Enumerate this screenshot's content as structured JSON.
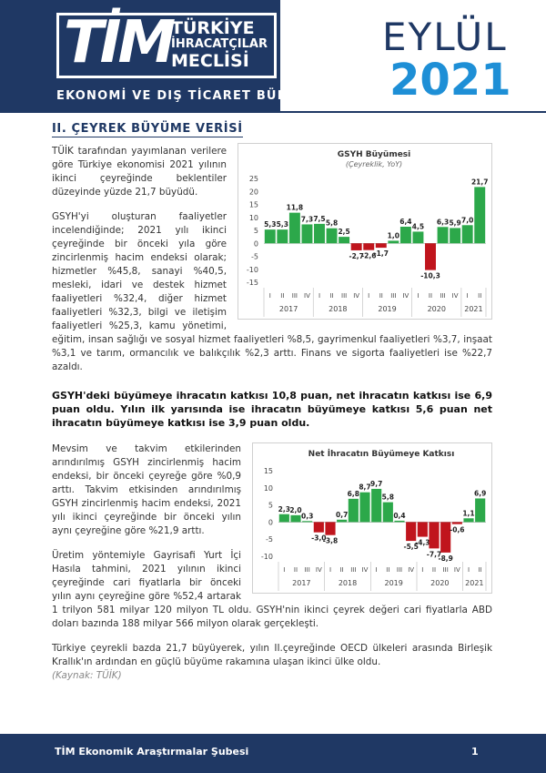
{
  "header": {
    "logo": "TİM",
    "logo_lines": [
      "TÜRKİYE",
      "İHRACATÇILAR",
      "MECLİSİ"
    ],
    "month": "EYLÜL",
    "year": "2021",
    "subtitle": "EKONOMİ VE DIŞ TİCARET BÜLTENİ"
  },
  "section_title": "II. ÇEYREK BÜYÜME VERİSİ",
  "paragraphs": [
    "TÜİK tarafından yayımlanan verilere göre Türkiye ekonomisi 2021 yılının ikinci çeyreğinde beklentiler düzeyinde yüzde 21,7 büyüdü.",
    "GSYH'yi oluşturan faaliyetler incelendiğinde; 2021 yılı ikinci çeyreğinde bir önceki yıla göre zincirlenmiş hacim endeksi olarak; hizmetler %45,8, sanayi %40,5, mesleki, idari ve destek hizmet faaliyetleri %32,4, diğer hizmet faaliyetleri %32,3, bilgi ve iletişim faaliyetleri %25,3, kamu yönetimi, eğitim, insan sağlığı ve sosyal hizmet faaliyetleri %8,5, gayrimenkul faaliyetleri %3,7, inşaat %3,1 ve tarım, ormancılık ve balıkçılık %2,3 arttı. Finans ve sigorta faaliyetleri ise %22,7 azaldı.",
    "GSYH'deki büyümeye ihracatın katkısı 10,8 puan, net ihracatın katkısı ise 6,9 puan oldu. Yılın ilk yarısında ise ihracatın büyümeye katkısı 5,6 puan net ihracatın büyümeye katkısı ise 3,9 puan oldu.",
    "Mevsim ve takvim etkilerinden arındırılmış GSYH zincirlenmiş hacim endeksi, bir önceki çeyreğe göre %0,9 arttı. Takvim etkisinden arındırılmış GSYH zincirlenmiş hacim endeksi, 2021 yılı ikinci çeyreğinde bir önceki yılın aynı çeyreğine göre %21,9 arttı.",
    "Üretim yöntemiyle Gayrisafi Yurt İçi Hasıla tahmini, 2021 yılının ikinci çeyreğinde cari fiyatlarla bir önceki yılın aynı çeyreğine göre %52,4 artarak 1 trilyon 581 milyar 120 milyon TL oldu. GSYH'nin ikinci çeyrek değeri cari fiyatlarla ABD doları bazında 188 milyar 566 milyon olarak gerçekleşti.",
    "Türkiye çeyrekli bazda 21,7 büyüyerek, yılın II.çeyreğinde OECD ülkeleri arasında Birleşik Krallık'ın ardından en güçlü büyüme rakamına ulaşan ikinci ülke oldu."
  ],
  "source": "(Kaynak: TÜİK)",
  "chart_data": [
    {
      "type": "bar",
      "title": "GSYH Büyümesi",
      "subtitle": "(Çeyreklik, YoY)",
      "category_groups": [
        {
          "label": "2017",
          "categories": [
            "I",
            "II",
            "III",
            "IV"
          ]
        },
        {
          "label": "2018",
          "categories": [
            "I",
            "II",
            "III",
            "IV"
          ]
        },
        {
          "label": "2019",
          "categories": [
            "I",
            "II",
            "III",
            "IV"
          ]
        },
        {
          "label": "2020",
          "categories": [
            "I",
            "II",
            "III",
            "IV"
          ]
        },
        {
          "label": "2021",
          "categories": [
            "I",
            "II"
          ]
        }
      ],
      "values": [
        5.3,
        5.3,
        11.8,
        7.3,
        7.5,
        5.8,
        2.5,
        -2.7,
        -2.6,
        -1.7,
        1.0,
        6.4,
        4.5,
        -10.3,
        6.3,
        5.9,
        7.0,
        21.7
      ],
      "value_labels": [
        "5,3",
        "5,3",
        "11,8",
        "7,3",
        "7,5",
        "5,8",
        "2,5",
        "-2,7",
        "-2,6",
        "-1,7",
        "1,0",
        "6,4",
        "4,5",
        "-10,3",
        "6,3",
        "5,9",
        "7,0",
        "21,7"
      ],
      "positive_color": "#2ca84a",
      "negative_color": "#c0151d",
      "ylim": [
        -15,
        25
      ],
      "yticks": [
        -15,
        -10,
        -5,
        0,
        5,
        10,
        15,
        20,
        25
      ]
    },
    {
      "type": "bar",
      "title": "Net İhracatın Büyümeye Katkısı",
      "category_groups": [
        {
          "label": "2017",
          "categories": [
            "I",
            "II",
            "III",
            "IV"
          ]
        },
        {
          "label": "2018",
          "categories": [
            "I",
            "II",
            "III",
            "IV"
          ]
        },
        {
          "label": "2019",
          "categories": [
            "I",
            "II",
            "III",
            "IV"
          ]
        },
        {
          "label": "2020",
          "categories": [
            "I",
            "II",
            "III",
            "IV"
          ]
        },
        {
          "label": "2021",
          "categories": [
            "I",
            "II"
          ]
        }
      ],
      "values": [
        2.3,
        2.0,
        0.3,
        -3.0,
        -3.8,
        0.7,
        6.8,
        8.7,
        9.7,
        5.8,
        0.4,
        -5.5,
        -4.3,
        -7.7,
        -8.9,
        -0.6,
        1.1,
        6.9
      ],
      "value_labels": [
        "2,3",
        "2,0",
        "0,3",
        "-3,0",
        "-3,8",
        "0,7",
        "6,8",
        "8,7",
        "9,7",
        "5,8",
        "0,4",
        "-5,5",
        "-4,3",
        "-7,7",
        "-8,9",
        "-0,6",
        "1,1",
        "6,9"
      ],
      "positive_color": "#2ca84a",
      "negative_color": "#c0151d",
      "ylim": [
        -10,
        15
      ],
      "yticks": [
        -10,
        -5,
        0,
        5,
        10,
        15
      ]
    }
  ],
  "footer": {
    "text": "TİM Ekonomik Araştırmalar Şubesi",
    "page": "1"
  }
}
